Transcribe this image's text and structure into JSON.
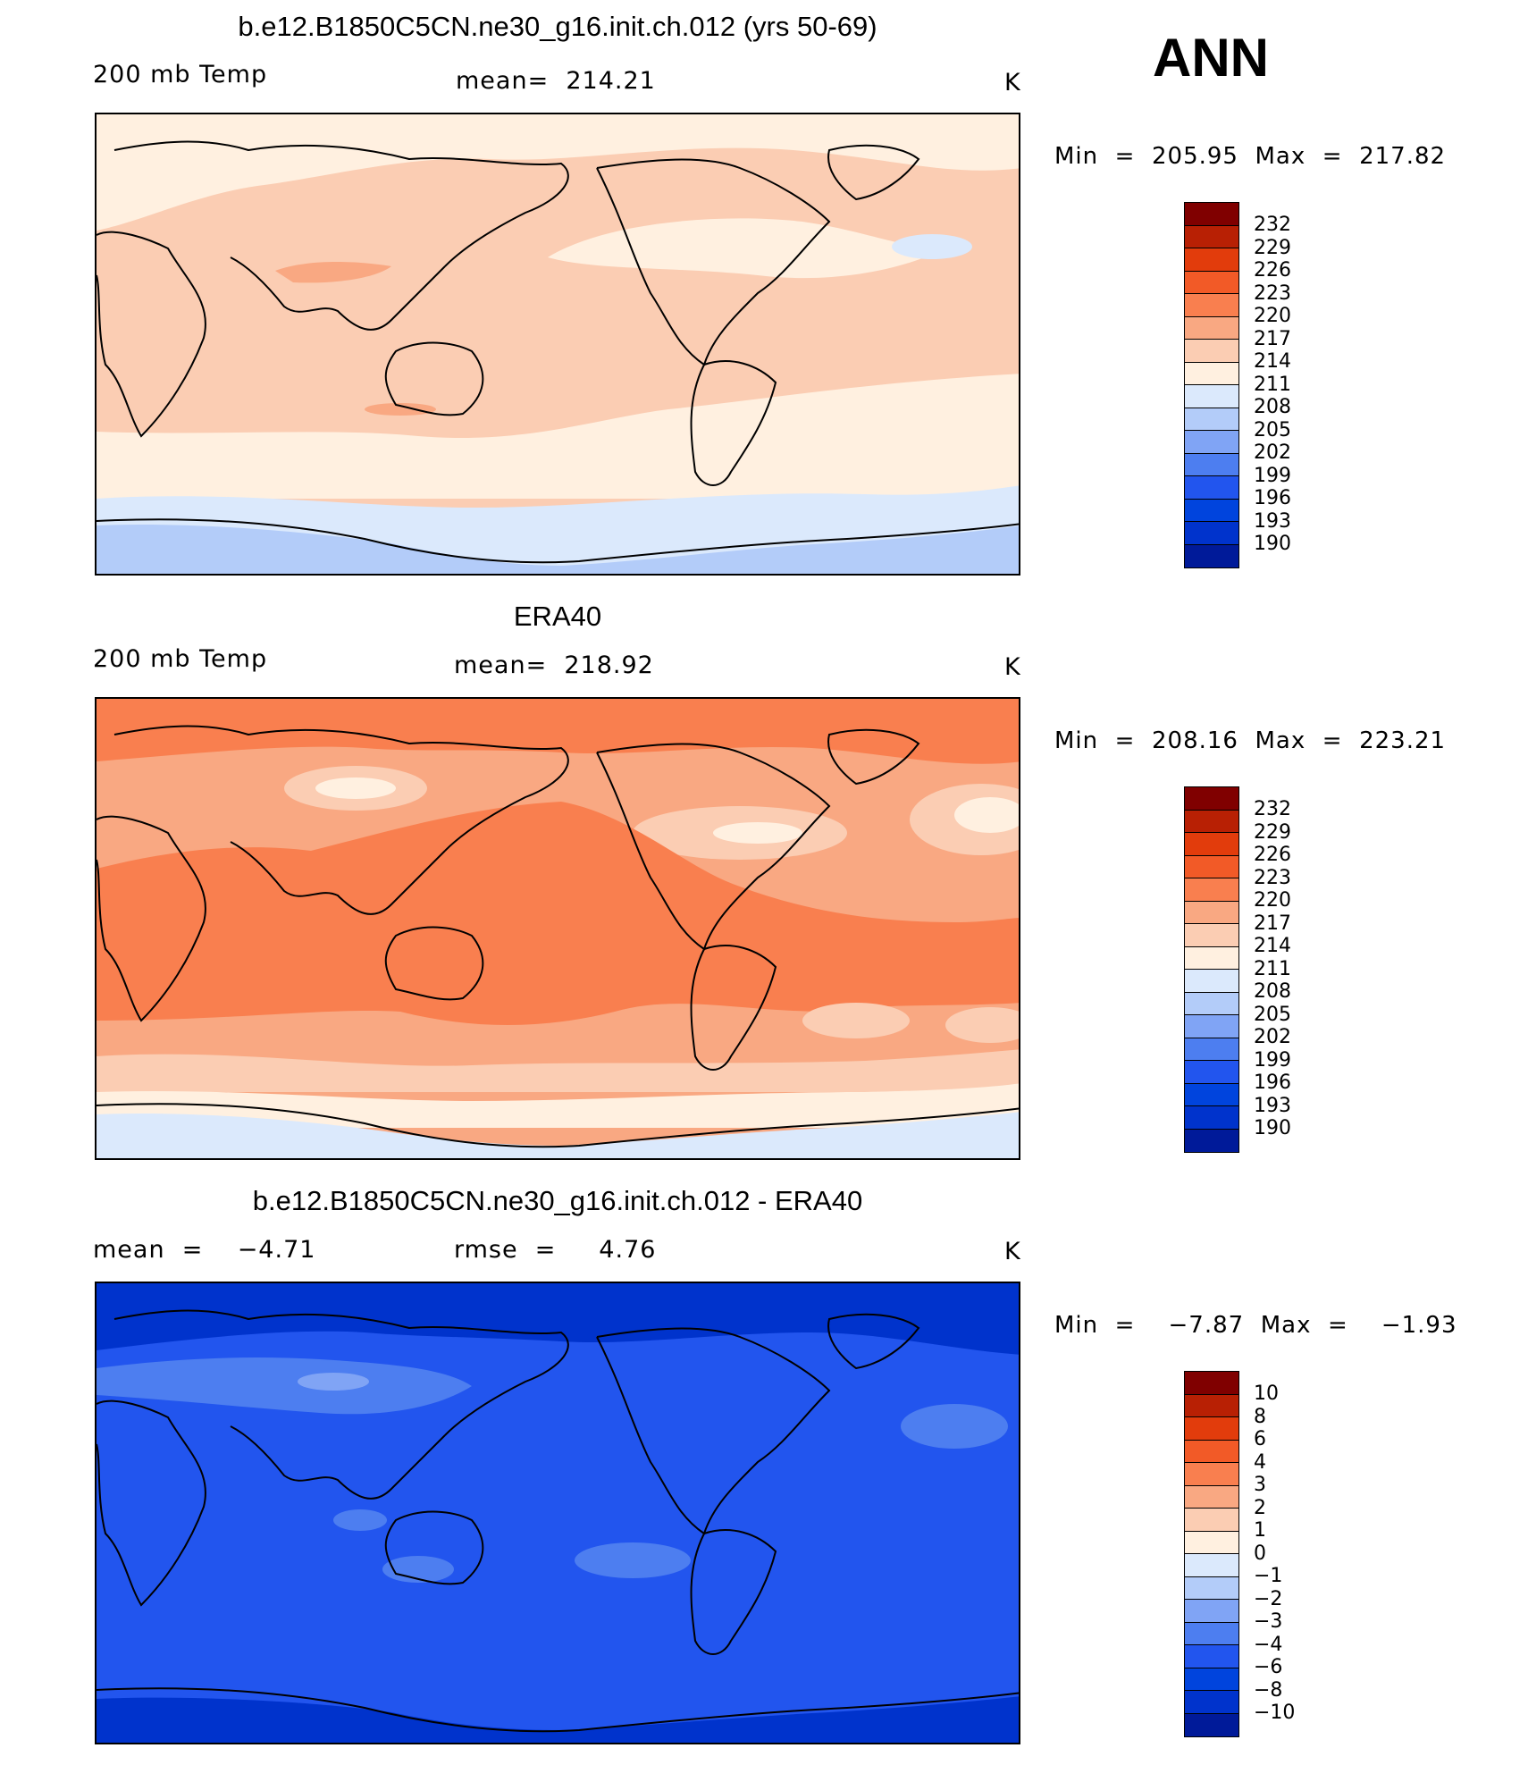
{
  "season": "ANN",
  "colors": {
    "abs": [
      "#000080",
      "#001a99",
      "#0033cc",
      "#0044dd",
      "#2255ee",
      "#4d7ef0",
      "#80a4f5",
      "#b3ccf9",
      "#dbe9fc",
      "#fff0e0",
      "#fbcdb3",
      "#f9a882",
      "#f97f4f",
      "#f25a27",
      "#e23c0c",
      "#b82004",
      "#800000"
    ],
    "diff": [
      "#000080",
      "#001a99",
      "#0033cc",
      "#0044dd",
      "#2255ee",
      "#4d7ef0",
      "#80a4f5",
      "#b3ccf9",
      "#dbe9fc",
      "#fff0e0",
      "#fbcdb3",
      "#f9a882",
      "#f97f4f",
      "#f25a27",
      "#e23c0c",
      "#b82004",
      "#800000"
    ]
  },
  "panels": [
    {
      "title": "b.e12.B1850C5CN.ne30_g16.init.ch.012 (yrs 50-69)",
      "left": "200 mb Temp",
      "center": "mean=  214.21",
      "units": "K",
      "minmax": "Min  =  205.95  Max  =  217.82",
      "legend_labels": [
        "232",
        "229",
        "226",
        "223",
        "220",
        "217",
        "214",
        "211",
        "208",
        "205",
        "202",
        "199",
        "196",
        "193",
        "190"
      ],
      "field": {
        "background": "#fbcdb3",
        "regions": [
          {
            "level": "211-214",
            "color": "#fff0e0",
            "desc": "northern high latitudes and southern mid latitudes"
          },
          {
            "level": "217-220",
            "color": "#f9a882",
            "desc": "Tibetan plateau and South Atlantic"
          },
          {
            "level": "208-211",
            "color": "#dbe9fc",
            "desc": "Southern Ocean and North Atlantic patch"
          },
          {
            "level": "205-208",
            "color": "#b3ccf9",
            "desc": "Antarctica"
          }
        ]
      }
    },
    {
      "title": "ERA40",
      "left": "200 mb Temp",
      "center": "mean=  218.92",
      "units": "K",
      "minmax": "Min  =  208.16  Max  =  223.21",
      "legend_labels": [
        "232",
        "229",
        "226",
        "223",
        "220",
        "217",
        "214",
        "211",
        "208",
        "205",
        "202",
        "199",
        "196",
        "193",
        "190"
      ],
      "field": {
        "background": "#f9a882",
        "regions": [
          {
            "level": "220-223",
            "color": "#f97f4f",
            "desc": "tropical belt"
          },
          {
            "level": "214-217",
            "color": "#fbcdb3",
            "desc": "mid latitude patches"
          },
          {
            "level": "211-214",
            "color": "#fff0e0",
            "desc": "Southern Ocean"
          },
          {
            "level": "208-211",
            "color": "#dbe9fc",
            "desc": "Antarctica"
          }
        ]
      }
    },
    {
      "title": "b.e12.B1850C5CN.ne30_g16.init.ch.012 - ERA40",
      "left": "mean  =    −4.71",
      "center": "rmse  =     4.76",
      "units": "K",
      "minmax": "Min  =    −7.87  Max  =    −1.93",
      "legend_labels": [
        "10",
        "8",
        "6",
        "4",
        "3",
        "2",
        "1",
        "0",
        "−1",
        "−2",
        "−3",
        "−4",
        "−6",
        "−8",
        "−10"
      ],
      "field": {
        "background": "#2255ee",
        "regions": [
          {
            "level": "-6 to -8",
            "color": "#0033cc",
            "desc": "polar regions"
          },
          {
            "level": "-3 to -4",
            "color": "#4d7ef0",
            "desc": "mid latitude patches"
          },
          {
            "level": "-2 to -3",
            "color": "#80a4f5",
            "desc": "Siberia patch"
          }
        ]
      }
    }
  ]
}
